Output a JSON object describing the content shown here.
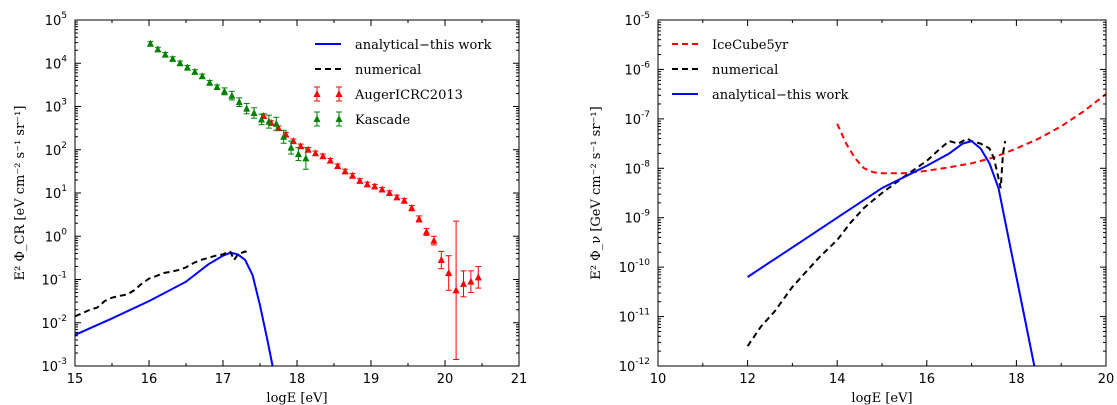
{
  "chart_data": [
    {
      "type": "line",
      "panel": "left",
      "xlabel": "logE [eV]",
      "ylabel": "E² Φ_CR [eV cm⁻² s⁻¹ sr⁻¹]",
      "xlim": [
        15,
        21
      ],
      "ylim_log10": [
        -3,
        5
      ],
      "yscale": "log",
      "xticks": [
        "15",
        "16",
        "17",
        "18",
        "19",
        "20",
        "21"
      ],
      "yticks": [
        {
          "base": "10",
          "exp": "-3"
        },
        {
          "base": "10",
          "exp": "-2"
        },
        {
          "base": "10",
          "exp": "-1"
        },
        {
          "base": "10",
          "exp": "0"
        },
        {
          "base": "10",
          "exp": "1"
        },
        {
          "base": "10",
          "exp": "2"
        },
        {
          "base": "10",
          "exp": "3"
        },
        {
          "base": "10",
          "exp": "4"
        },
        {
          "base": "10",
          "exp": "5"
        }
      ],
      "legend_position": "top-right",
      "series": [
        {
          "name": "analytical−this work",
          "style": "solid",
          "color": "#0000ff",
          "points": [
            [
              15.0,
              -2.28
            ],
            [
              15.5,
              -1.9
            ],
            [
              16.0,
              -1.5
            ],
            [
              16.5,
              -1.05
            ],
            [
              16.8,
              -0.65
            ],
            [
              17.0,
              -0.45
            ],
            [
              17.1,
              -0.38
            ],
            [
              17.2,
              -0.42
            ],
            [
              17.3,
              -0.55
            ],
            [
              17.4,
              -0.9
            ],
            [
              17.5,
              -1.6
            ],
            [
              17.6,
              -2.4
            ],
            [
              17.67,
              -3.0
            ]
          ]
        },
        {
          "name": "numerical",
          "style": "dashed",
          "color": "#000000",
          "points": [
            [
              15.0,
              -1.85
            ],
            [
              15.1,
              -1.78
            ],
            [
              15.2,
              -1.7
            ],
            [
              15.3,
              -1.65
            ],
            [
              15.4,
              -1.5
            ],
            [
              15.5,
              -1.42
            ],
            [
              15.6,
              -1.38
            ],
            [
              15.7,
              -1.35
            ],
            [
              15.8,
              -1.25
            ],
            [
              15.9,
              -1.1
            ],
            [
              16.0,
              -0.98
            ],
            [
              16.1,
              -0.92
            ],
            [
              16.2,
              -0.85
            ],
            [
              16.3,
              -0.82
            ],
            [
              16.4,
              -0.78
            ],
            [
              16.5,
              -0.72
            ],
            [
              16.6,
              -0.62
            ],
            [
              16.7,
              -0.55
            ],
            [
              16.8,
              -0.5
            ],
            [
              16.9,
              -0.45
            ],
            [
              17.0,
              -0.42
            ],
            [
              17.05,
              -0.37
            ],
            [
              17.1,
              -0.36
            ],
            [
              17.15,
              -0.55
            ],
            [
              17.2,
              -0.42
            ],
            [
              17.3,
              -0.35
            ],
            [
              17.35,
              -0.4
            ]
          ]
        },
        {
          "name": "AugerICRC2013",
          "style": "triangle-errorbar",
          "color": "#ff0000",
          "points": [
            [
              17.55,
              2.78,
              0.05
            ],
            [
              17.65,
              2.62,
              0.05
            ],
            [
              17.75,
              2.5,
              0.05
            ],
            [
              17.85,
              2.35,
              0.05
            ],
            [
              17.95,
              2.2,
              0.05
            ],
            [
              18.05,
              2.08,
              0.05
            ],
            [
              18.15,
              2.0,
              0.05
            ],
            [
              18.25,
              1.92,
              0.05
            ],
            [
              18.35,
              1.85,
              0.05
            ],
            [
              18.45,
              1.75,
              0.05
            ],
            [
              18.55,
              1.62,
              0.05
            ],
            [
              18.65,
              1.5,
              0.05
            ],
            [
              18.75,
              1.4,
              0.05
            ],
            [
              18.85,
              1.28,
              0.05
            ],
            [
              18.95,
              1.2,
              0.05
            ],
            [
              19.05,
              1.15,
              0.05
            ],
            [
              19.15,
              1.08,
              0.05
            ],
            [
              19.25,
              1.0,
              0.05
            ],
            [
              19.35,
              0.9,
              0.05
            ],
            [
              19.45,
              0.82,
              0.05
            ],
            [
              19.55,
              0.65,
              0.06
            ],
            [
              19.65,
              0.4,
              0.07
            ],
            [
              19.75,
              0.1,
              0.08
            ],
            [
              19.85,
              -0.1,
              0.1
            ],
            [
              19.95,
              -0.55,
              0.2
            ],
            [
              20.05,
              -0.85,
              0.4
            ],
            [
              20.15,
              -1.25,
              1.6
            ],
            [
              20.25,
              -1.1,
              0.3
            ],
            [
              20.35,
              -1.05,
              0.25
            ],
            [
              20.45,
              -0.95,
              0.25
            ]
          ]
        },
        {
          "name": "Kascade",
          "style": "triangle-errorbar",
          "color": "#008000",
          "points": [
            [
              16.02,
              4.45,
              0.05
            ],
            [
              16.12,
              4.32,
              0.05
            ],
            [
              16.22,
              4.2,
              0.05
            ],
            [
              16.32,
              4.1,
              0.05
            ],
            [
              16.42,
              4.0,
              0.05
            ],
            [
              16.52,
              3.9,
              0.05
            ],
            [
              16.62,
              3.8,
              0.05
            ],
            [
              16.72,
              3.7,
              0.05
            ],
            [
              16.82,
              3.55,
              0.05
            ],
            [
              16.92,
              3.45,
              0.05
            ],
            [
              17.02,
              3.35,
              0.08
            ],
            [
              17.12,
              3.25,
              0.1
            ],
            [
              17.22,
              3.1,
              0.1
            ],
            [
              17.32,
              2.95,
              0.12
            ],
            [
              17.42,
              2.85,
              0.12
            ],
            [
              17.52,
              2.7,
              0.12
            ],
            [
              17.62,
              2.65,
              0.15
            ],
            [
              17.72,
              2.6,
              0.15
            ],
            [
              17.82,
              2.3,
              0.15
            ],
            [
              17.92,
              2.05,
              0.15
            ],
            [
              18.02,
              1.9,
              0.15
            ],
            [
              18.12,
              1.8,
              0.25
            ]
          ]
        }
      ]
    },
    {
      "type": "line",
      "panel": "right",
      "xlabel": "logE [eV]",
      "ylabel": "E² Φ_ν [GeV cm⁻² s⁻¹ sr⁻¹]",
      "xlim": [
        10,
        20
      ],
      "ylim_log10": [
        -12,
        -5
      ],
      "yscale": "log",
      "xticks": [
        "10",
        "12",
        "14",
        "16",
        "18",
        "20"
      ],
      "yticks": [
        {
          "base": "10",
          "exp": "-12"
        },
        {
          "base": "10",
          "exp": "-11"
        },
        {
          "base": "10",
          "exp": "-10"
        },
        {
          "base": "10",
          "exp": "-9"
        },
        {
          "base": "10",
          "exp": "-8"
        },
        {
          "base": "10",
          "exp": "-7"
        },
        {
          "base": "10",
          "exp": "-6"
        },
        {
          "base": "10",
          "exp": "-5"
        }
      ],
      "legend_position": "top-left",
      "series": [
        {
          "name": "IceCube5yr",
          "style": "dashed",
          "color": "#ff0000",
          "points": [
            [
              14.0,
              -7.1
            ],
            [
              14.2,
              -7.5
            ],
            [
              14.4,
              -7.8
            ],
            [
              14.6,
              -8.0
            ],
            [
              14.8,
              -8.08
            ],
            [
              15.0,
              -8.1
            ],
            [
              15.5,
              -8.1
            ],
            [
              16.0,
              -8.05
            ],
            [
              16.5,
              -7.98
            ],
            [
              17.0,
              -7.9
            ],
            [
              17.5,
              -7.78
            ],
            [
              18.0,
              -7.6
            ],
            [
              18.5,
              -7.4
            ],
            [
              19.0,
              -7.15
            ],
            [
              19.5,
              -6.85
            ],
            [
              20.0,
              -6.5
            ]
          ]
        },
        {
          "name": "numerical",
          "style": "dashed",
          "color": "#000000",
          "points": [
            [
              12.0,
              -11.6
            ],
            [
              12.3,
              -11.2
            ],
            [
              12.6,
              -10.9
            ],
            [
              13.0,
              -10.4
            ],
            [
              13.3,
              -10.1
            ],
            [
              13.6,
              -9.8
            ],
            [
              14.0,
              -9.45
            ],
            [
              14.3,
              -9.1
            ],
            [
              14.6,
              -8.8
            ],
            [
              15.0,
              -8.5
            ],
            [
              15.3,
              -8.3
            ],
            [
              15.6,
              -8.1
            ],
            [
              16.0,
              -7.85
            ],
            [
              16.3,
              -7.6
            ],
            [
              16.5,
              -7.45
            ],
            [
              16.7,
              -7.5
            ],
            [
              16.9,
              -7.4
            ],
            [
              17.0,
              -7.45
            ],
            [
              17.2,
              -7.5
            ],
            [
              17.4,
              -7.6
            ],
            [
              17.5,
              -7.8
            ],
            [
              17.6,
              -8.2
            ],
            [
              17.65,
              -8.4
            ],
            [
              17.7,
              -7.7
            ],
            [
              17.75,
              -7.45
            ]
          ]
        },
        {
          "name": "analytical−this work",
          "style": "solid",
          "color": "#0000ff",
          "points": [
            [
              12.0,
              -10.2
            ],
            [
              13.0,
              -9.6
            ],
            [
              14.0,
              -9.0
            ],
            [
              15.0,
              -8.4
            ],
            [
              16.0,
              -7.95
            ],
            [
              16.5,
              -7.7
            ],
            [
              16.8,
              -7.5
            ],
            [
              17.0,
              -7.45
            ],
            [
              17.2,
              -7.6
            ],
            [
              17.4,
              -7.9
            ],
            [
              17.6,
              -8.4
            ],
            [
              17.8,
              -9.3
            ],
            [
              18.0,
              -10.2
            ],
            [
              18.2,
              -11.1
            ],
            [
              18.4,
              -12.0
            ]
          ]
        }
      ]
    }
  ]
}
